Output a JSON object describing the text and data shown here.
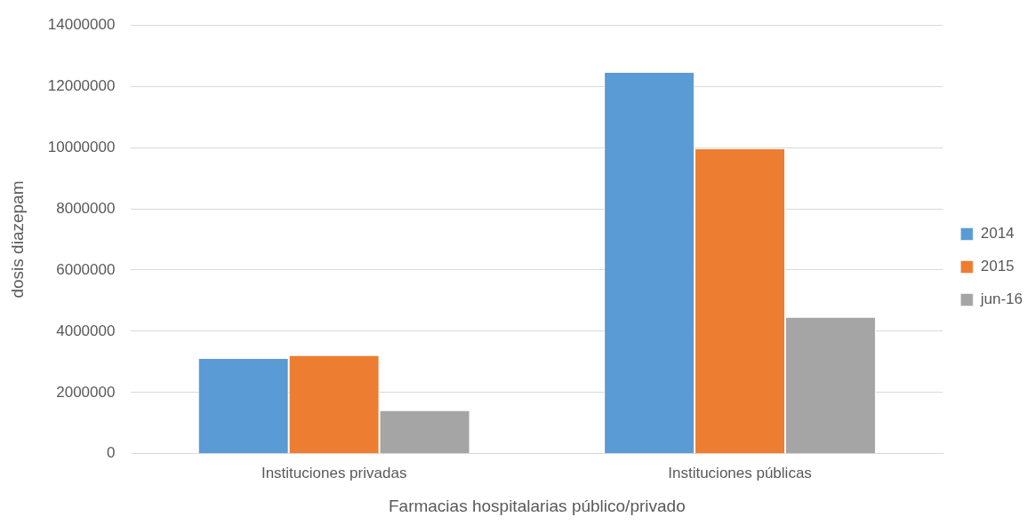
{
  "chart_data": {
    "type": "bar",
    "xlabel": "Farmacias hospitalarias público/privado",
    "ylabel": "dosis diazepam",
    "categories": [
      "Instituciones privadas",
      "Instituciones públicas"
    ],
    "series": [
      {
        "name": "2014",
        "color": "#5b9bd5",
        "values": [
          3100000,
          12450000
        ]
      },
      {
        "name": "2015",
        "color": "#ed7d31",
        "values": [
          3200000,
          9950000
        ]
      },
      {
        "name": "jun-16",
        "color": "#a5a5a5",
        "values": [
          1400000,
          4450000
        ]
      }
    ],
    "ylim": [
      0,
      14000000
    ],
    "yticks": [
      0,
      2000000,
      4000000,
      6000000,
      8000000,
      10000000,
      12000000,
      14000000
    ],
    "grid": "y",
    "legend": "right"
  }
}
